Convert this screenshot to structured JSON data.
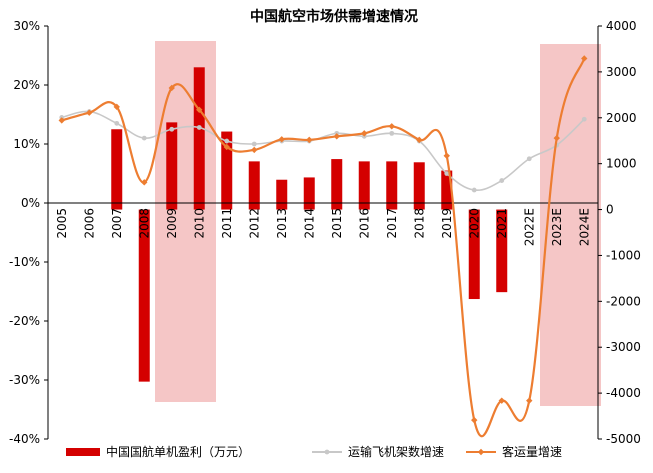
{
  "chart_data": {
    "type": "bar",
    "title": "中国航空市场供需增速情况",
    "categories": [
      "2005",
      "2006",
      "2007",
      "2008",
      "2009",
      "2010",
      "2011",
      "2012",
      "2013",
      "2014",
      "2015",
      "2016",
      "2017",
      "2018",
      "2019",
      "2020",
      "2021",
      "2022E",
      "2023E",
      "2024E"
    ],
    "left_axis": {
      "min": -0.4,
      "max": 0.3,
      "ticks": [
        "-40%",
        "-30%",
        "-20%",
        "-10%",
        "0%",
        "10%",
        "20%",
        "30%"
      ]
    },
    "right_axis": {
      "min": -5000,
      "max": 4000,
      "ticks": [
        "-5000",
        "-4000",
        "-3000",
        "-2000",
        "-1000",
        "0",
        "1000",
        "2000",
        "3000",
        "4000"
      ]
    },
    "highlight_ranges": [
      {
        "from": "2009",
        "to": "2010",
        "color": "#f5c6c6"
      },
      {
        "from": "2023E",
        "to": "2024E",
        "color": "#f5c6c6"
      }
    ],
    "series": [
      {
        "name": "中国国航单机盈利（万元）",
        "kind": "bar",
        "axis": "right",
        "color": "#d40000",
        "values": [
          null,
          null,
          1750,
          -3750,
          1900,
          3100,
          1700,
          1050,
          650,
          700,
          1100,
          1050,
          1050,
          1030,
          850,
          -1950,
          -1800,
          null,
          null,
          null
        ]
      },
      {
        "name": "运输飞机架数增速",
        "kind": "line",
        "axis": "left",
        "color": "#c8c8c8",
        "values": [
          0.145,
          0.155,
          0.135,
          0.11,
          0.125,
          0.128,
          0.105,
          0.1,
          0.105,
          0.105,
          0.118,
          0.113,
          0.118,
          0.105,
          0.05,
          0.022,
          0.038,
          0.075,
          0.098,
          0.142
        ]
      },
      {
        "name": "客运量增速",
        "kind": "line",
        "axis": "left",
        "color": "#ed7d31",
        "values": [
          0.14,
          0.153,
          0.163,
          0.035,
          0.195,
          0.158,
          0.095,
          0.09,
          0.108,
          0.107,
          0.113,
          0.118,
          0.13,
          0.107,
          0.08,
          -0.368,
          -0.335,
          -0.335,
          0.11,
          0.245
        ]
      }
    ],
    "legend_position": "bottom",
    "grid": false
  }
}
